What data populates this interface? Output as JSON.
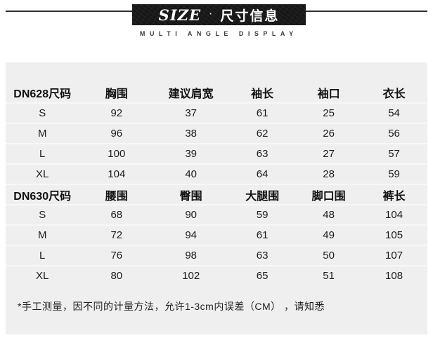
{
  "header": {
    "title_en": "SIZE",
    "title_separator": "·",
    "title_zh": "尺寸信息",
    "subtitle": "MULTI ANGLE DISPLAY"
  },
  "size_chart": {
    "tables": [
      {
        "columns": [
          "DN628尺码",
          "胸围",
          "建议肩宽",
          "袖长",
          "袖口",
          "衣长"
        ],
        "rows": [
          [
            "S",
            "92",
            "37",
            "61",
            "25",
            "54"
          ],
          [
            "M",
            "96",
            "38",
            "62",
            "26",
            "56"
          ],
          [
            "L",
            "100",
            "39",
            "63",
            "27",
            "57"
          ],
          [
            "XL",
            "104",
            "40",
            "64",
            "28",
            "59"
          ]
        ]
      },
      {
        "columns": [
          "DN630尺码",
          "腰围",
          "臀围",
          "大腿围",
          "脚口围",
          "裤长"
        ],
        "rows": [
          [
            "S",
            "68",
            "90",
            "59",
            "48",
            "104"
          ],
          [
            "M",
            "72",
            "94",
            "61",
            "49",
            "105"
          ],
          [
            "L",
            "76",
            "98",
            "63",
            "50",
            "107"
          ],
          [
            "XL",
            "80",
            "102",
            "65",
            "51",
            "108"
          ]
        ]
      }
    ],
    "note": "*手工测量，因不同的计量方法，允许1-3cm内误差（CM） ，请知悉",
    "unit": "CM"
  },
  "colors": {
    "banner-bg": "#171717",
    "banner-text": "#ffffff",
    "panel-bg": "#efefef",
    "text": "#1c1c1c",
    "line": "#2e2e2e",
    "row-divider": "#f7f7f7"
  }
}
